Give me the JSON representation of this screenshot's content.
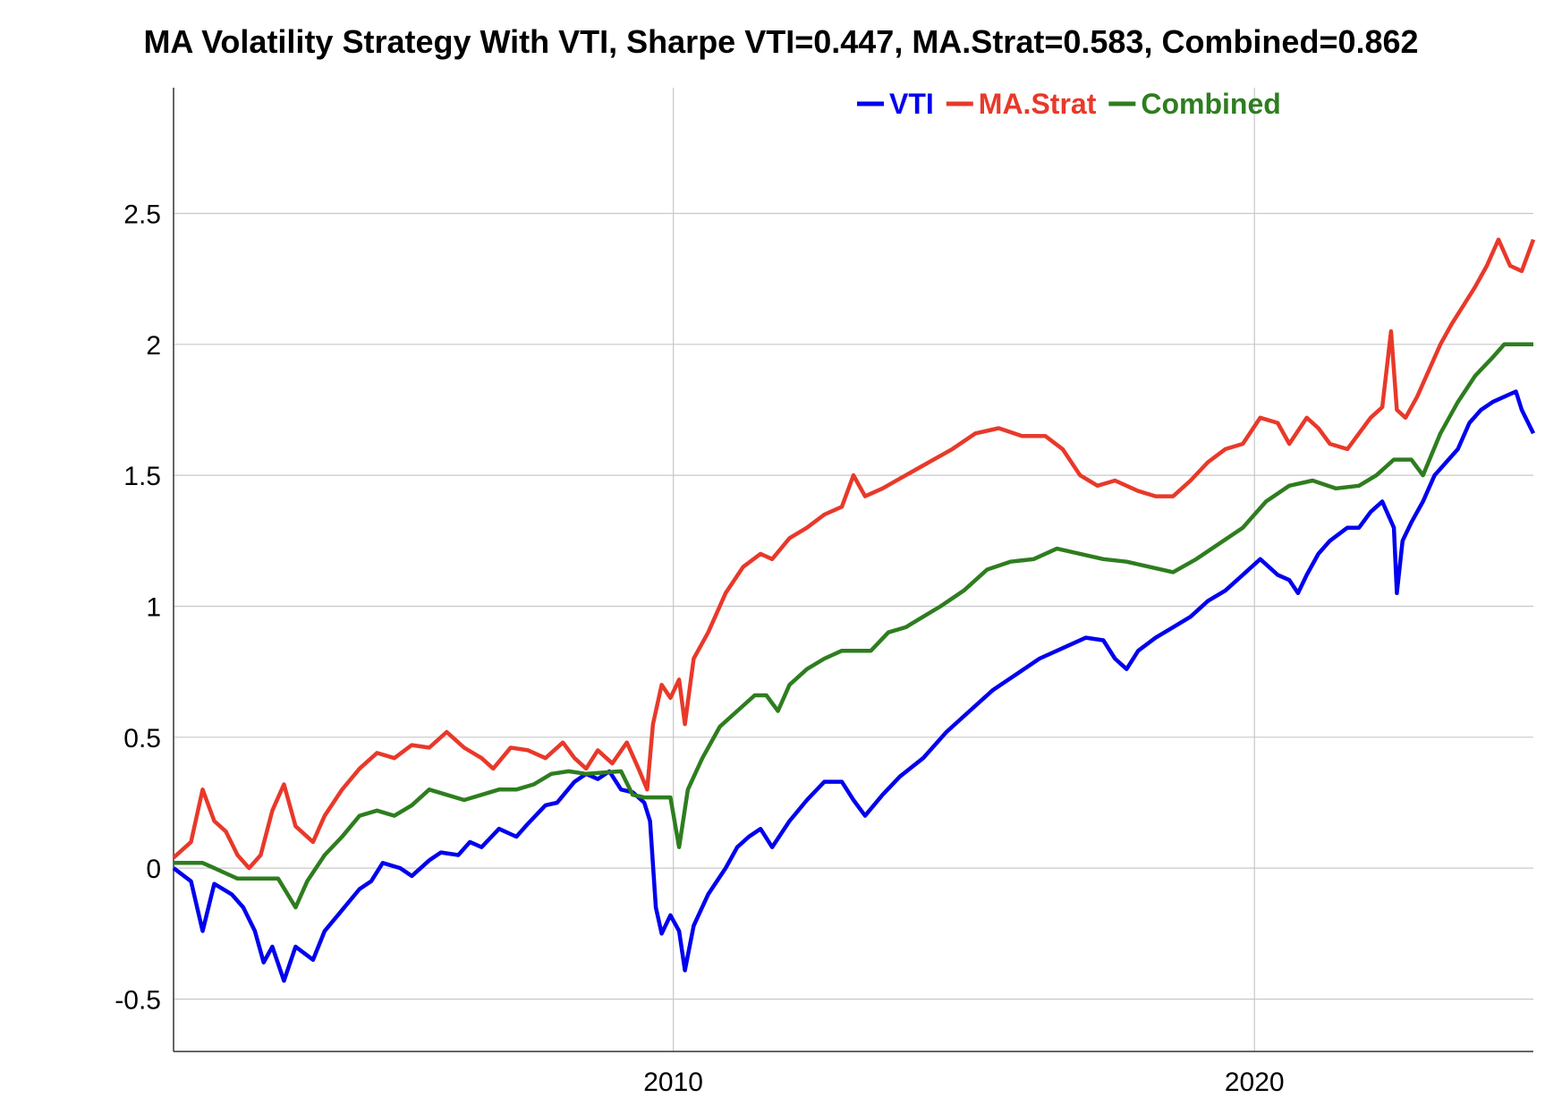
{
  "chart_data": {
    "type": "line",
    "title": "MA Volatility Strategy With VTI, Sharpe VTI=0.447, MA.Strat=0.583, Combined=0.862",
    "xlabel": "",
    "ylabel": "",
    "xlim": [
      2001.4,
      2024.8
    ],
    "ylim": [
      -0.7,
      2.98
    ],
    "x_ticks": [
      2010,
      2020
    ],
    "y_ticks": [
      -0.5,
      0,
      0.5,
      1,
      1.5,
      2,
      2.5
    ],
    "y_tick_labels": [
      "-0.5",
      "0",
      "0.5",
      "1",
      "1.5",
      "2",
      "2.5"
    ],
    "x_tick_labels": [
      "2010",
      "2020"
    ],
    "grid": true,
    "legend_position": "top-right",
    "series": [
      {
        "name": "VTI",
        "color": "#0000ee",
        "points": [
          [
            2001.4,
            0.0
          ],
          [
            2001.7,
            -0.05
          ],
          [
            2001.9,
            -0.24
          ],
          [
            2002.1,
            -0.06
          ],
          [
            2002.4,
            -0.1
          ],
          [
            2002.6,
            -0.15
          ],
          [
            2002.8,
            -0.24
          ],
          [
            2002.95,
            -0.36
          ],
          [
            2003.1,
            -0.3
          ],
          [
            2003.3,
            -0.43
          ],
          [
            2003.5,
            -0.3
          ],
          [
            2003.8,
            -0.35
          ],
          [
            2004.0,
            -0.24
          ],
          [
            2004.3,
            -0.16
          ],
          [
            2004.6,
            -0.08
          ],
          [
            2004.8,
            -0.05
          ],
          [
            2005.0,
            0.02
          ],
          [
            2005.3,
            0.0
          ],
          [
            2005.5,
            -0.03
          ],
          [
            2005.8,
            0.03
          ],
          [
            2006.0,
            0.06
          ],
          [
            2006.3,
            0.05
          ],
          [
            2006.5,
            0.1
          ],
          [
            2006.7,
            0.08
          ],
          [
            2007.0,
            0.15
          ],
          [
            2007.3,
            0.12
          ],
          [
            2007.5,
            0.17
          ],
          [
            2007.8,
            0.24
          ],
          [
            2008.0,
            0.25
          ],
          [
            2008.3,
            0.33
          ],
          [
            2008.5,
            0.36
          ],
          [
            2008.7,
            0.34
          ],
          [
            2008.9,
            0.37
          ],
          [
            2009.1,
            0.3
          ],
          [
            2009.3,
            0.29
          ],
          [
            2009.5,
            0.25
          ],
          [
            2009.6,
            0.18
          ],
          [
            2009.7,
            -0.15
          ],
          [
            2009.8,
            -0.25
          ],
          [
            2009.95,
            -0.18
          ],
          [
            2010.1,
            -0.24
          ],
          [
            2010.2,
            -0.39
          ],
          [
            2010.35,
            -0.22
          ],
          [
            2010.6,
            -0.1
          ],
          [
            2010.9,
            0.0
          ],
          [
            2011.1,
            0.08
          ],
          [
            2011.3,
            0.12
          ],
          [
            2011.5,
            0.15
          ],
          [
            2011.7,
            0.08
          ],
          [
            2012.0,
            0.18
          ],
          [
            2012.3,
            0.26
          ],
          [
            2012.6,
            0.33
          ],
          [
            2012.9,
            0.33
          ],
          [
            2013.1,
            0.26
          ],
          [
            2013.3,
            0.2
          ],
          [
            2013.6,
            0.28
          ],
          [
            2013.9,
            0.35
          ],
          [
            2014.3,
            0.42
          ],
          [
            2014.7,
            0.52
          ],
          [
            2015.1,
            0.6
          ],
          [
            2015.5,
            0.68
          ],
          [
            2015.9,
            0.74
          ],
          [
            2016.3,
            0.8
          ],
          [
            2016.7,
            0.84
          ],
          [
            2017.1,
            0.88
          ],
          [
            2017.4,
            0.87
          ],
          [
            2017.6,
            0.8
          ],
          [
            2017.8,
            0.76
          ],
          [
            2018.0,
            0.83
          ],
          [
            2018.3,
            0.88
          ],
          [
            2018.6,
            0.92
          ],
          [
            2018.9,
            0.96
          ],
          [
            2019.2,
            1.02
          ],
          [
            2019.5,
            1.06
          ],
          [
            2019.8,
            1.12
          ],
          [
            2020.1,
            1.18
          ],
          [
            2020.4,
            1.12
          ],
          [
            2020.6,
            1.1
          ],
          [
            2020.75,
            1.05
          ],
          [
            2020.9,
            1.12
          ],
          [
            2021.1,
            1.2
          ],
          [
            2021.3,
            1.25
          ],
          [
            2021.6,
            1.3
          ],
          [
            2021.8,
            1.3
          ],
          [
            2022.0,
            1.36
          ],
          [
            2022.2,
            1.4
          ],
          [
            2022.4,
            1.3
          ],
          [
            2022.45,
            1.05
          ],
          [
            2022.55,
            1.25
          ],
          [
            2022.7,
            1.32
          ],
          [
            2022.9,
            1.4
          ],
          [
            2023.1,
            1.5
          ],
          [
            2023.3,
            1.55
          ],
          [
            2023.5,
            1.6
          ],
          [
            2023.7,
            1.7
          ],
          [
            2023.9,
            1.75
          ],
          [
            2024.1,
            1.78
          ],
          [
            2024.3,
            1.8
          ],
          [
            2024.5,
            1.82
          ],
          [
            2024.6,
            1.75
          ],
          [
            2024.8,
            1.66
          ]
        ]
      },
      {
        "name": "MA.Strat",
        "color": "#e8392a",
        "points": [
          [
            2001.4,
            0.04
          ],
          [
            2001.7,
            0.1
          ],
          [
            2001.9,
            0.3
          ],
          [
            2002.1,
            0.18
          ],
          [
            2002.3,
            0.14
          ],
          [
            2002.5,
            0.05
          ],
          [
            2002.7,
            0.0
          ],
          [
            2002.9,
            0.05
          ],
          [
            2003.1,
            0.22
          ],
          [
            2003.3,
            0.32
          ],
          [
            2003.5,
            0.16
          ],
          [
            2003.8,
            0.1
          ],
          [
            2004.0,
            0.2
          ],
          [
            2004.3,
            0.3
          ],
          [
            2004.6,
            0.38
          ],
          [
            2004.9,
            0.44
          ],
          [
            2005.2,
            0.42
          ],
          [
            2005.5,
            0.47
          ],
          [
            2005.8,
            0.46
          ],
          [
            2006.1,
            0.52
          ],
          [
            2006.4,
            0.46
          ],
          [
            2006.7,
            0.42
          ],
          [
            2006.9,
            0.38
          ],
          [
            2007.2,
            0.46
          ],
          [
            2007.5,
            0.45
          ],
          [
            2007.8,
            0.42
          ],
          [
            2008.1,
            0.48
          ],
          [
            2008.3,
            0.42
          ],
          [
            2008.5,
            0.38
          ],
          [
            2008.7,
            0.45
          ],
          [
            2008.95,
            0.4
          ],
          [
            2009.2,
            0.48
          ],
          [
            2009.4,
            0.38
          ],
          [
            2009.55,
            0.3
          ],
          [
            2009.65,
            0.55
          ],
          [
            2009.8,
            0.7
          ],
          [
            2009.95,
            0.65
          ],
          [
            2010.1,
            0.72
          ],
          [
            2010.2,
            0.55
          ],
          [
            2010.35,
            0.8
          ],
          [
            2010.6,
            0.9
          ],
          [
            2010.9,
            1.05
          ],
          [
            2011.2,
            1.15
          ],
          [
            2011.5,
            1.2
          ],
          [
            2011.7,
            1.18
          ],
          [
            2012.0,
            1.26
          ],
          [
            2012.3,
            1.3
          ],
          [
            2012.6,
            1.35
          ],
          [
            2012.9,
            1.38
          ],
          [
            2013.1,
            1.5
          ],
          [
            2013.3,
            1.42
          ],
          [
            2013.6,
            1.45
          ],
          [
            2014.0,
            1.5
          ],
          [
            2014.4,
            1.55
          ],
          [
            2014.8,
            1.6
          ],
          [
            2015.2,
            1.66
          ],
          [
            2015.6,
            1.68
          ],
          [
            2016.0,
            1.65
          ],
          [
            2016.4,
            1.65
          ],
          [
            2016.7,
            1.6
          ],
          [
            2017.0,
            1.5
          ],
          [
            2017.3,
            1.46
          ],
          [
            2017.6,
            1.48
          ],
          [
            2018.0,
            1.44
          ],
          [
            2018.3,
            1.42
          ],
          [
            2018.6,
            1.42
          ],
          [
            2018.9,
            1.48
          ],
          [
            2019.2,
            1.55
          ],
          [
            2019.5,
            1.6
          ],
          [
            2019.8,
            1.62
          ],
          [
            2020.1,
            1.72
          ],
          [
            2020.4,
            1.7
          ],
          [
            2020.6,
            1.62
          ],
          [
            2020.9,
            1.72
          ],
          [
            2021.1,
            1.68
          ],
          [
            2021.3,
            1.62
          ],
          [
            2021.6,
            1.6
          ],
          [
            2021.8,
            1.66
          ],
          [
            2022.0,
            1.72
          ],
          [
            2022.2,
            1.76
          ],
          [
            2022.35,
            2.05
          ],
          [
            2022.45,
            1.75
          ],
          [
            2022.6,
            1.72
          ],
          [
            2022.8,
            1.8
          ],
          [
            2023.0,
            1.9
          ],
          [
            2023.2,
            2.0
          ],
          [
            2023.4,
            2.08
          ],
          [
            2023.6,
            2.15
          ],
          [
            2023.8,
            2.22
          ],
          [
            2024.0,
            2.3
          ],
          [
            2024.2,
            2.4
          ],
          [
            2024.4,
            2.3
          ],
          [
            2024.6,
            2.28
          ],
          [
            2024.8,
            2.4
          ]
        ]
      },
      {
        "name": "Combined",
        "color": "#2e7d1f",
        "points": [
          [
            2001.4,
            0.02
          ],
          [
            2001.9,
            0.02
          ],
          [
            2002.1,
            0.0
          ],
          [
            2002.3,
            -0.02
          ],
          [
            2002.5,
            -0.04
          ],
          [
            2002.7,
            -0.04
          ],
          [
            2003.2,
            -0.04
          ],
          [
            2003.5,
            -0.15
          ],
          [
            2003.7,
            -0.05
          ],
          [
            2004.0,
            0.05
          ],
          [
            2004.3,
            0.12
          ],
          [
            2004.6,
            0.2
          ],
          [
            2004.9,
            0.22
          ],
          [
            2005.2,
            0.2
          ],
          [
            2005.5,
            0.24
          ],
          [
            2005.8,
            0.3
          ],
          [
            2006.1,
            0.28
          ],
          [
            2006.4,
            0.26
          ],
          [
            2006.7,
            0.28
          ],
          [
            2007.0,
            0.3
          ],
          [
            2007.3,
            0.3
          ],
          [
            2007.6,
            0.32
          ],
          [
            2007.9,
            0.36
          ],
          [
            2008.2,
            0.37
          ],
          [
            2008.5,
            0.36
          ],
          [
            2009.1,
            0.37
          ],
          [
            2009.3,
            0.28
          ],
          [
            2009.5,
            0.27
          ],
          [
            2009.95,
            0.27
          ],
          [
            2010.1,
            0.08
          ],
          [
            2010.25,
            0.3
          ],
          [
            2010.5,
            0.42
          ],
          [
            2010.8,
            0.54
          ],
          [
            2011.1,
            0.6
          ],
          [
            2011.4,
            0.66
          ],
          [
            2011.6,
            0.66
          ],
          [
            2011.8,
            0.6
          ],
          [
            2012.0,
            0.7
          ],
          [
            2012.3,
            0.76
          ],
          [
            2012.6,
            0.8
          ],
          [
            2012.9,
            0.83
          ],
          [
            2013.4,
            0.83
          ],
          [
            2013.7,
            0.9
          ],
          [
            2014.0,
            0.92
          ],
          [
            2014.3,
            0.96
          ],
          [
            2014.6,
            1.0
          ],
          [
            2015.0,
            1.06
          ],
          [
            2015.4,
            1.14
          ],
          [
            2015.8,
            1.17
          ],
          [
            2016.2,
            1.18
          ],
          [
            2016.6,
            1.22
          ],
          [
            2017.0,
            1.2
          ],
          [
            2017.4,
            1.18
          ],
          [
            2017.8,
            1.17
          ],
          [
            2018.2,
            1.15
          ],
          [
            2018.6,
            1.13
          ],
          [
            2019.0,
            1.18
          ],
          [
            2019.4,
            1.24
          ],
          [
            2019.8,
            1.3
          ],
          [
            2020.2,
            1.4
          ],
          [
            2020.6,
            1.46
          ],
          [
            2021.0,
            1.48
          ],
          [
            2021.4,
            1.45
          ],
          [
            2021.8,
            1.46
          ],
          [
            2022.1,
            1.5
          ],
          [
            2022.4,
            1.56
          ],
          [
            2022.7,
            1.56
          ],
          [
            2022.9,
            1.5
          ],
          [
            2023.2,
            1.66
          ],
          [
            2023.5,
            1.78
          ],
          [
            2023.8,
            1.88
          ],
          [
            2024.1,
            1.95
          ],
          [
            2024.3,
            2.0
          ],
          [
            2024.8,
            2.0
          ]
        ]
      }
    ]
  }
}
